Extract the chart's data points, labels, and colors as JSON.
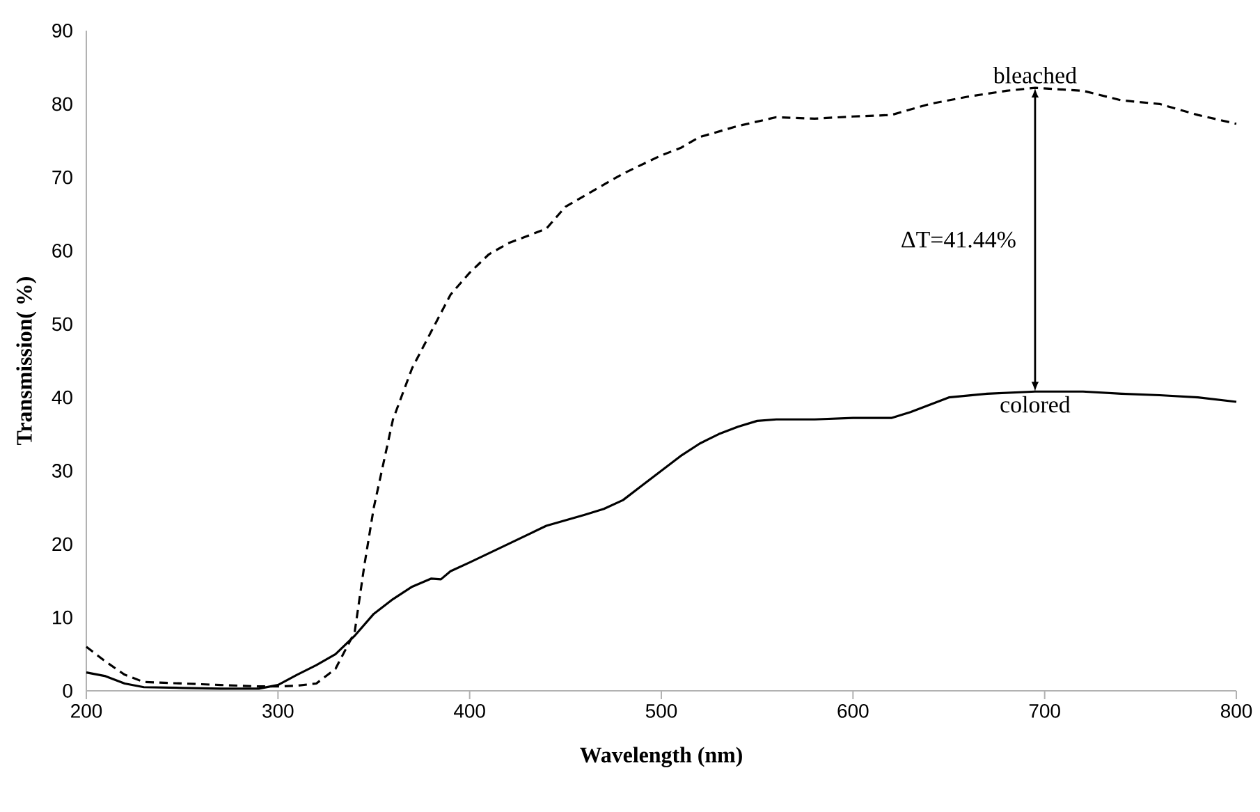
{
  "chart_data": {
    "type": "line",
    "xlabel": "Wavelength (nm)",
    "ylabel": "Transmission( %)",
    "xlim": [
      200,
      800
    ],
    "xticks": [
      200,
      300,
      400,
      500,
      600,
      700,
      800
    ],
    "ylim": [
      0,
      90
    ],
    "yticks": [
      0,
      10,
      20,
      30,
      40,
      50,
      60,
      70,
      80,
      90
    ],
    "grid": false,
    "legend": false,
    "annotations": [
      "ΔT=41.44%"
    ],
    "series": [
      {
        "name": "bleached",
        "color": "#000000",
        "line_style": "dashed",
        "x": [
          200,
          210,
          220,
          230,
          250,
          270,
          290,
          300,
          310,
          320,
          330,
          340,
          345,
          350,
          360,
          370,
          380,
          390,
          400,
          410,
          420,
          440,
          450,
          460,
          480,
          500,
          510,
          520,
          540,
          560,
          580,
          600,
          620,
          640,
          660,
          680,
          695,
          720,
          740,
          760,
          780,
          800
        ],
        "values": [
          6,
          4,
          2.2,
          1.2,
          1.0,
          0.8,
          0.6,
          0.6,
          0.7,
          1.0,
          3.0,
          8,
          17,
          25,
          37,
          44,
          49,
          54,
          57,
          59.5,
          61,
          63,
          66,
          67.5,
          70.5,
          73,
          74,
          75.5,
          77,
          78.2,
          78,
          78.3,
          78.5,
          80,
          81,
          81.8,
          82.2,
          81.8,
          80.5,
          80,
          78.5,
          77.3
        ]
      },
      {
        "name": "colored",
        "color": "#000000",
        "line_style": "solid",
        "x": [
          200,
          210,
          220,
          230,
          250,
          270,
          290,
          300,
          310,
          320,
          330,
          340,
          350,
          360,
          370,
          380,
          385,
          390,
          400,
          420,
          440,
          460,
          470,
          480,
          490,
          500,
          510,
          520,
          530,
          540,
          550,
          560,
          580,
          600,
          620,
          630,
          640,
          650,
          670,
          695,
          720,
          740,
          760,
          780,
          800
        ],
        "values": [
          2.5,
          2.0,
          1.0,
          0.5,
          0.4,
          0.3,
          0.3,
          0.8,
          2.2,
          3.5,
          5.0,
          7.5,
          10.5,
          12.5,
          14.2,
          15.3,
          15.2,
          16.3,
          17.5,
          20,
          22.5,
          24,
          24.8,
          26,
          28,
          30,
          32,
          33.7,
          35,
          36,
          36.8,
          37,
          37,
          37.2,
          37.2,
          38,
          39,
          40,
          40.5,
          40.8,
          40.8,
          40.5,
          40.3,
          40.0,
          39.4
        ]
      }
    ]
  }
}
